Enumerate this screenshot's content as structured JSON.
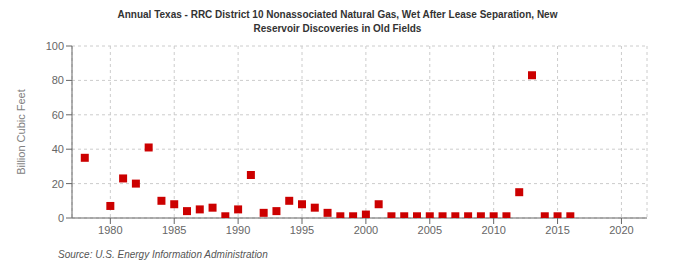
{
  "chart_data": {
    "type": "scatter",
    "title": "Annual Texas - RRC District 10 Nonassociated Natural Gas, Wet After Lease Separation, New\nReservoir Discoveries in Old Fields",
    "ylabel": "Billion Cubic Feet",
    "annotations": [
      "Source: U.S. Energy Information Administration"
    ],
    "color": "#cc0000",
    "marker": "square",
    "grid": true,
    "xlim": [
      1977,
      2022
    ],
    "ylim": [
      0,
      100
    ],
    "xticks": [
      1980,
      1985,
      1990,
      1995,
      2000,
      2005,
      2010,
      2015,
      2020
    ],
    "yticks": [
      0,
      20,
      40,
      60,
      80,
      100
    ],
    "x": [
      1978,
      1980,
      1981,
      1982,
      1983,
      1984,
      1985,
      1986,
      1987,
      1988,
      1989,
      1990,
      1991,
      1992,
      1993,
      1994,
      1995,
      1996,
      1997,
      1998,
      1999,
      2000,
      2001,
      2002,
      2003,
      2004,
      2005,
      2006,
      2007,
      2008,
      2009,
      2010,
      2011,
      2012,
      2013,
      2014,
      2015,
      2016
    ],
    "values": [
      35,
      7,
      23,
      20,
      41,
      10,
      8,
      4,
      5,
      6,
      1,
      5,
      25,
      3,
      4,
      10,
      8,
      6,
      3,
      1,
      1,
      2,
      8,
      1,
      1,
      1,
      1,
      1,
      1,
      1,
      1,
      1,
      1,
      15,
      83,
      1,
      1,
      1
    ]
  }
}
